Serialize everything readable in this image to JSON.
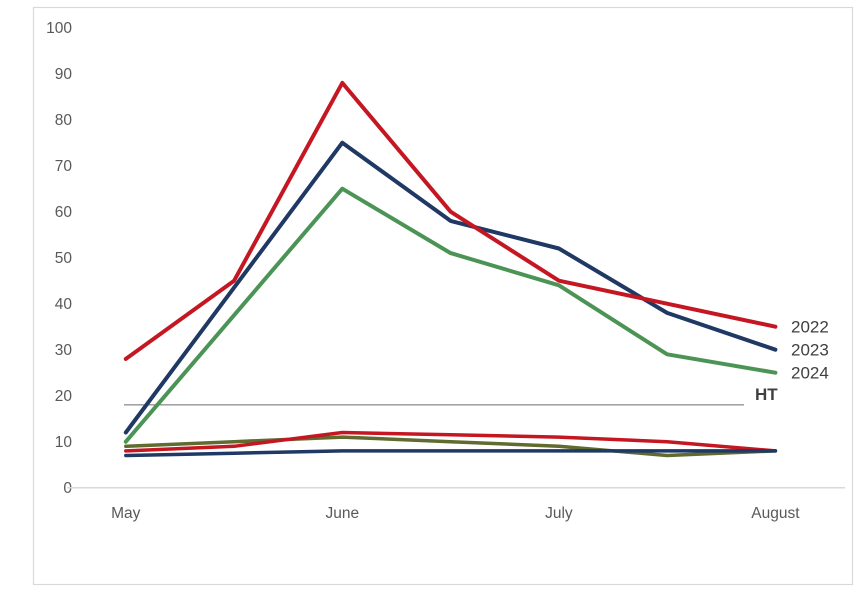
{
  "chart_data": {
    "type": "line",
    "title": "",
    "categories": [
      "May",
      "",
      "June",
      "",
      "July",
      "",
      "August"
    ],
    "xlabel": "",
    "ylabel": "",
    "ylim": [
      0,
      100
    ],
    "ytick_step": 10,
    "ytick_labels": [
      "0",
      "10",
      "20",
      "30",
      "40",
      "50",
      "60",
      "70",
      "80",
      "90",
      "100"
    ],
    "grid": "baseline-only",
    "legend_position": "right-end-of-line-labels",
    "series": [
      {
        "name": "unlabeled-olive",
        "end_label": "",
        "color": "#5F6B2F",
        "width": 3.5,
        "values": [
          9,
          10,
          11,
          10,
          9,
          7,
          8
        ]
      },
      {
        "name": "unlabeled-red",
        "end_label": "",
        "color": "#C41722",
        "width": 3.5,
        "values": [
          8,
          9,
          12,
          11.5,
          11,
          10,
          8
        ]
      },
      {
        "name": "unlabeled-navy",
        "end_label": "",
        "color": "#1F3864",
        "width": 3.5,
        "values": [
          7,
          7.5,
          8,
          8,
          8,
          8,
          8
        ]
      },
      {
        "name": "2024",
        "end_label": "2024",
        "color": "#4C9456",
        "width": 4,
        "values": [
          10,
          37.5,
          65,
          51,
          44,
          29,
          25
        ]
      },
      {
        "name": "2023",
        "end_label": "2023",
        "color": "#1F3864",
        "width": 4,
        "values": [
          12,
          43.5,
          75,
          58,
          52,
          38,
          30
        ]
      },
      {
        "name": "2022",
        "end_label": "2022",
        "color": "#C41722",
        "width": 4,
        "values": [
          28,
          45,
          88,
          60,
          45,
          40,
          35
        ]
      }
    ],
    "reference_line": {
      "label": "HT",
      "value": 18,
      "line_color": "#6A6A6A",
      "label_color": "#404040"
    }
  },
  "style_colors": {
    "axis_text": "#595959",
    "end_label_text": "#404040",
    "axis_line": "#D9D9D9",
    "frame_border": "#D9D9D9",
    "background": "#FFFFFF"
  }
}
